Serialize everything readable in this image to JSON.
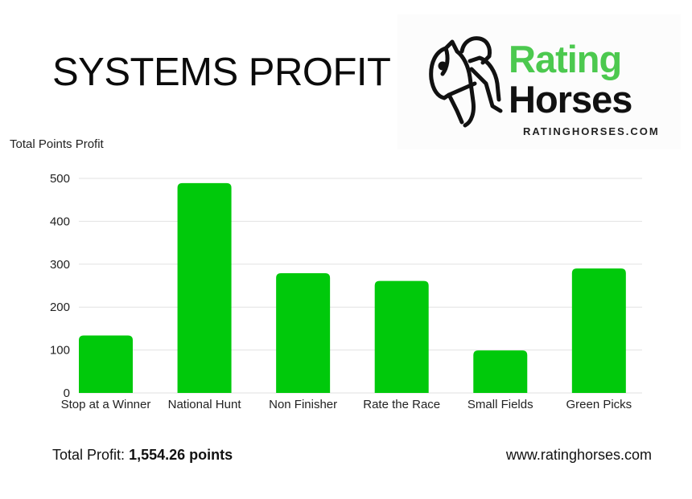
{
  "header": {
    "title": "SYSTEMS PROFIT"
  },
  "logo": {
    "word1": "Rating",
    "word2": "Horses",
    "url": "RATINGHORSES.COM"
  },
  "footer": {
    "total_label": "Total Profit:",
    "total_value": "1,554.26 points",
    "website": "www.ratinghorses.com"
  },
  "colors": {
    "bar": "#00c90b",
    "logo_green": "#4cc94f",
    "grid": "#e2e2e2"
  },
  "chart_data": {
    "type": "bar",
    "title": "",
    "xlabel": "",
    "ylabel": "Total Points Profit",
    "categories": [
      "Stop at a Winner",
      "National Hunt",
      "Non Finisher",
      "Rate the Race",
      "Small Fields",
      "Green Picks"
    ],
    "values": [
      134,
      489,
      279,
      261,
      99,
      290
    ],
    "ylim": [
      0,
      500
    ],
    "yticks": [
      0,
      100,
      200,
      300,
      400,
      500
    ],
    "grid": true,
    "legend": "none"
  }
}
